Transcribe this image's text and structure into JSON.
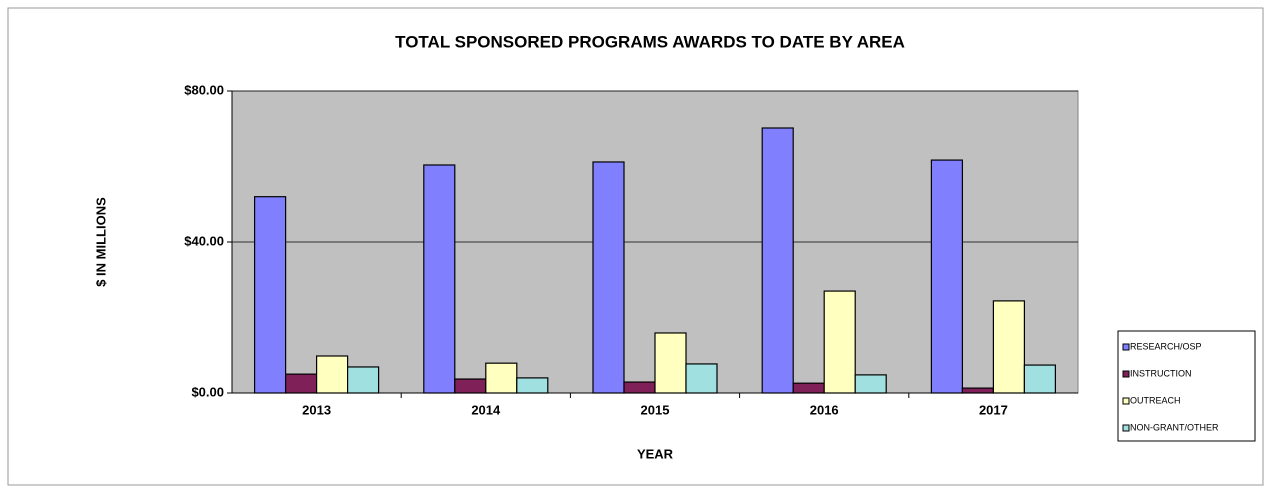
{
  "chart_data": {
    "type": "bar",
    "title": "TOTAL SPONSORED PROGRAMS AWARDS TO DATE BY AREA",
    "x_label": "YEAR",
    "y_label": "$ IN MILLIONS",
    "categories": [
      "2013",
      "2014",
      "2015",
      "2016",
      "2017"
    ],
    "series": [
      {
        "name": "RESEARCH/OSP",
        "color": "#8080ff",
        "values": [
          52,
          60.4,
          61.2,
          70.2,
          61.7
        ]
      },
      {
        "name": "INSTRUCTION",
        "color": "#7f2058",
        "values": [
          5.0,
          3.7,
          2.9,
          2.6,
          1.3
        ]
      },
      {
        "name": "OUTREACH",
        "color": "#ffffc0",
        "values": [
          9.8,
          7.9,
          15.9,
          27.0,
          24.4
        ]
      },
      {
        "name": "NON-GRANT/OTHER",
        "color": "#a0e0e0",
        "values": [
          6.9,
          4.0,
          7.7,
          4.8,
          7.4
        ]
      }
    ],
    "ylim": [
      0,
      80
    ],
    "yticks": [
      {
        "value": 0,
        "label": "$0.00"
      },
      {
        "value": 40,
        "label": "$40.00"
      },
      {
        "value": 80,
        "label": "$80.00"
      }
    ],
    "grid": true,
    "legend": "right",
    "plot_background": "#c0c0c0"
  }
}
